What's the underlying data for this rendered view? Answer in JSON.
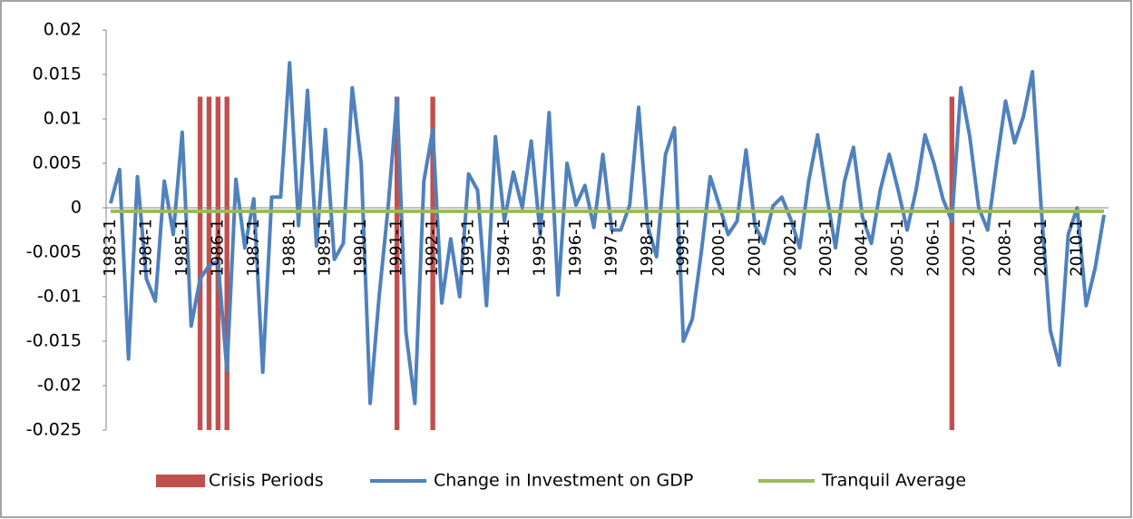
{
  "chart_data": {
    "type": "bar-line",
    "categories": [
      "1983-1",
      null,
      null,
      null,
      "1984-1",
      null,
      null,
      null,
      "1985-1",
      null,
      null,
      null,
      "1986-1",
      null,
      null,
      null,
      "1987-1",
      null,
      null,
      null,
      "1988-1",
      null,
      null,
      null,
      "1989-1",
      null,
      null,
      null,
      "1990-1",
      null,
      null,
      null,
      "1991-1",
      null,
      null,
      null,
      "1992-1",
      null,
      null,
      null,
      "1993-1",
      null,
      null,
      null,
      "1994-1",
      null,
      null,
      null,
      "1995-1",
      null,
      null,
      null,
      "1996-1",
      null,
      null,
      null,
      "1997-1",
      null,
      null,
      null,
      "1998-1",
      null,
      null,
      null,
      "1999-1",
      null,
      null,
      null,
      "2000-1",
      null,
      null,
      null,
      "2001-1",
      null,
      null,
      null,
      "2002-1",
      null,
      null,
      null,
      "2003-1",
      null,
      null,
      null,
      "2004-1",
      null,
      null,
      null,
      "2005-1",
      null,
      null,
      null,
      "2006-1",
      null,
      null,
      null,
      "2007-1",
      null,
      null,
      null,
      "2008-1",
      null,
      null,
      null,
      "2009-1",
      null,
      null,
      null,
      "2010-1",
      null,
      null,
      null
    ],
    "series": [
      {
        "name": "Crisis Periods",
        "kind": "bar",
        "color": "#c0504d",
        "values": [
          null,
          null,
          null,
          null,
          null,
          null,
          null,
          null,
          null,
          null,
          0.0125,
          0.0125,
          0.0125,
          0.0125,
          null,
          null,
          null,
          null,
          null,
          null,
          null,
          null,
          null,
          null,
          null,
          null,
          null,
          null,
          null,
          null,
          null,
          null,
          0.0125,
          null,
          null,
          null,
          0.0125,
          null,
          null,
          null,
          null,
          null,
          null,
          null,
          null,
          null,
          null,
          null,
          null,
          null,
          null,
          null,
          null,
          null,
          null,
          null,
          null,
          null,
          null,
          null,
          null,
          null,
          null,
          null,
          null,
          null,
          null,
          null,
          null,
          null,
          null,
          null,
          null,
          null,
          null,
          null,
          null,
          null,
          null,
          null,
          null,
          null,
          null,
          null,
          null,
          null,
          null,
          null,
          null,
          null,
          null,
          null,
          null,
          null,
          0.0125,
          null,
          null,
          null,
          null,
          null,
          null,
          null,
          null,
          null,
          null,
          null,
          null,
          null,
          null,
          null,
          null,
          null
        ]
      },
      {
        "name": "Change in Investment on GDP",
        "kind": "line",
        "color": "#4f81bd",
        "values": [
          0.0005,
          0.0043,
          -0.017,
          0.0035,
          -0.008,
          -0.0105,
          0.003,
          -0.003,
          0.0085,
          -0.0133,
          -0.008,
          -0.0065,
          -0.006,
          -0.0183,
          0.0032,
          -0.0045,
          0.001,
          -0.0185,
          0.0012,
          0.0012,
          0.0163,
          -0.002,
          0.0132,
          -0.0043,
          0.0088,
          -0.0058,
          -0.004,
          0.0135,
          0.005,
          -0.022,
          -0.01,
          0.0,
          0.0123,
          -0.014,
          -0.022,
          0.003,
          0.0088,
          -0.0107,
          -0.0035,
          -0.01,
          0.0038,
          0.002,
          -0.011,
          0.008,
          -0.0015,
          0.004,
          0.0,
          0.0075,
          -0.003,
          0.0107,
          -0.0098,
          0.005,
          0.0003,
          0.0025,
          -0.0022,
          0.006,
          -0.0025,
          -0.0025,
          0.0003,
          0.0113,
          -0.002,
          -0.0055,
          0.006,
          0.009,
          -0.015,
          -0.0125,
          -0.005,
          0.0035,
          0.0003,
          -0.003,
          -0.0015,
          0.0065,
          -0.002,
          -0.004,
          0.0002,
          0.0012,
          -0.0013,
          -0.0045,
          0.003,
          0.0082,
          0.0015,
          -0.0045,
          0.003,
          0.0068,
          -0.001,
          -0.004,
          0.002,
          0.006,
          0.002,
          -0.0025,
          0.002,
          0.0082,
          0.005,
          0.001,
          -0.0015,
          0.0135,
          0.008,
          0.0,
          -0.0025,
          0.005,
          0.012,
          0.0073,
          0.0103,
          0.0153,
          -0.0003,
          -0.0138,
          -0.0177,
          -0.003,
          0.0,
          -0.011,
          -0.0068,
          -0.0008
        ]
      },
      {
        "name": "Tranquil Average",
        "kind": "line",
        "color": "#9bbb59",
        "values": [
          -0.0004,
          -0.0004,
          -0.0004,
          -0.0004,
          -0.0004,
          -0.0004,
          -0.0004,
          -0.0004,
          -0.0004,
          -0.0004,
          -0.0004,
          -0.0004,
          -0.0004,
          -0.0004,
          -0.0004,
          -0.0004,
          -0.0004,
          -0.0004,
          -0.0004,
          -0.0004,
          -0.0004,
          -0.0004,
          -0.0004,
          -0.0004,
          -0.0004,
          -0.0004,
          -0.0004,
          -0.0004,
          -0.0004,
          -0.0004,
          -0.0004,
          -0.0004,
          -0.0004,
          -0.0004,
          -0.0004,
          -0.0004,
          -0.0004,
          -0.0004,
          -0.0004,
          -0.0004,
          -0.0004,
          -0.0004,
          -0.0004,
          -0.0004,
          -0.0004,
          -0.0004,
          -0.0004,
          -0.0004,
          -0.0004,
          -0.0004,
          -0.0004,
          -0.0004,
          -0.0004,
          -0.0004,
          -0.0004,
          -0.0004,
          -0.0004,
          -0.0004,
          -0.0004,
          -0.0004,
          -0.0004,
          -0.0004,
          -0.0004,
          -0.0004,
          -0.0004,
          -0.0004,
          -0.0004,
          -0.0004,
          -0.0004,
          -0.0004,
          -0.0004,
          -0.0004,
          -0.0004,
          -0.0004,
          -0.0004,
          -0.0004,
          -0.0004,
          -0.0004,
          -0.0004,
          -0.0004,
          -0.0004,
          -0.0004,
          -0.0004,
          -0.0004,
          -0.0004,
          -0.0004,
          -0.0004,
          -0.0004,
          -0.0004,
          -0.0004,
          -0.0004,
          -0.0004,
          -0.0004,
          -0.0004,
          -0.0004,
          -0.0004,
          -0.0004,
          -0.0004,
          -0.0004,
          -0.0004,
          -0.0004,
          -0.0004,
          -0.0004,
          -0.0004,
          -0.0004,
          -0.0004,
          -0.0004,
          -0.0004,
          -0.0004,
          -0.0004,
          -0.0004,
          -0.0004
        ]
      }
    ],
    "ylim": [
      -0.025,
      0.02
    ],
    "yticks": [
      0.02,
      0.015,
      0.01,
      0.005,
      0,
      -0.005,
      -0.01,
      -0.015,
      -0.02,
      -0.025
    ],
    "legend": "bottom"
  }
}
